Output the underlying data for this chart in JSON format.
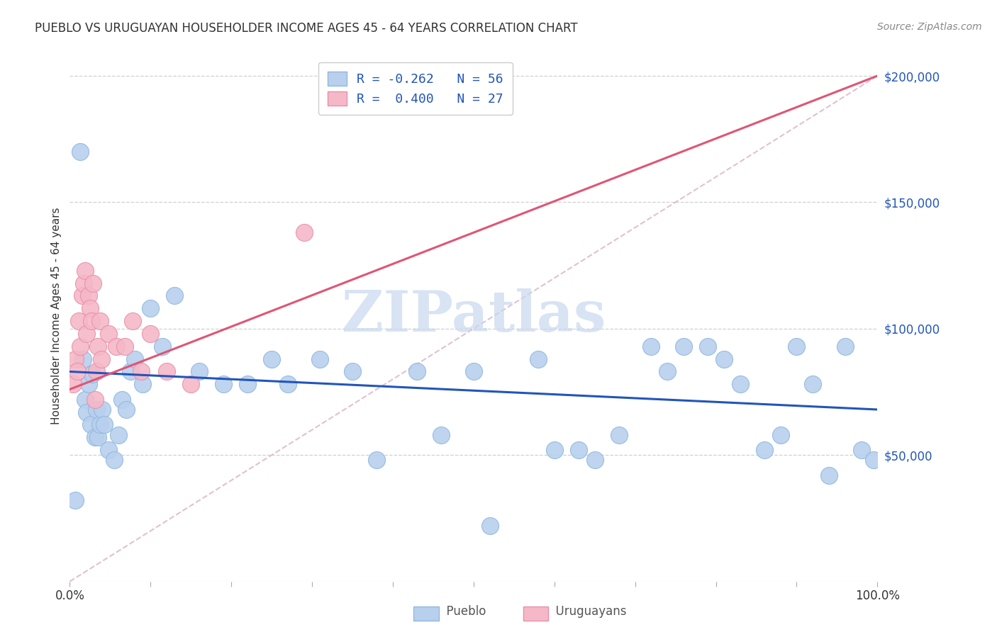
{
  "title": "PUEBLO VS URUGUAYAN HOUSEHOLDER INCOME AGES 45 - 64 YEARS CORRELATION CHART",
  "source": "Source: ZipAtlas.com",
  "ylabel": "Householder Income Ages 45 - 64 years",
  "xlim": [
    0,
    1
  ],
  "ylim": [
    0,
    210000
  ],
  "yticks": [
    50000,
    100000,
    150000,
    200000
  ],
  "ytick_labels": [
    "$50,000",
    "$100,000",
    "$150,000",
    "$200,000"
  ],
  "xticks": [
    0,
    0.1,
    0.2,
    0.3,
    0.4,
    0.5,
    0.6,
    0.7,
    0.8,
    0.9,
    1.0
  ],
  "xtick_labels": [
    "0.0%",
    "",
    "",
    "",
    "",
    "",
    "",
    "",
    "",
    "",
    "100.0%"
  ],
  "background_color": "#ffffff",
  "grid_color": "#d0d0d0",
  "pueblo_color": "#b8d0ed",
  "uruguayan_color": "#f5b8c8",
  "pueblo_edge": "#90b8e0",
  "uruguayan_edge": "#e890a8",
  "blue_line_color": "#2255bb",
  "pink_line_color": "#e05575",
  "ref_line_color": "#ddbbcc",
  "tick_label_color": "#2255bb",
  "watermark_color": "#c8d8ee",
  "blue_line_x": [
    0.0,
    1.0
  ],
  "blue_line_y": [
    83000,
    68000
  ],
  "pink_line_x": [
    0.0,
    1.0
  ],
  "pink_line_y": [
    76000,
    200000
  ],
  "ref_line_x": [
    0.0,
    1.0
  ],
  "ref_line_y": [
    0,
    200000
  ],
  "pueblo_x": [
    0.007,
    0.013,
    0.016,
    0.019,
    0.021,
    0.023,
    0.026,
    0.028,
    0.031,
    0.033,
    0.035,
    0.037,
    0.04,
    0.043,
    0.048,
    0.055,
    0.06,
    0.065,
    0.07,
    0.075,
    0.08,
    0.09,
    0.1,
    0.115,
    0.13,
    0.16,
    0.19,
    0.22,
    0.25,
    0.27,
    0.31,
    0.35,
    0.38,
    0.43,
    0.46,
    0.5,
    0.52,
    0.58,
    0.6,
    0.63,
    0.65,
    0.68,
    0.72,
    0.74,
    0.76,
    0.79,
    0.81,
    0.83,
    0.86,
    0.88,
    0.9,
    0.92,
    0.94,
    0.96,
    0.98,
    0.995
  ],
  "pueblo_y": [
    32000,
    170000,
    88000,
    72000,
    67000,
    78000,
    62000,
    82000,
    57000,
    68000,
    57000,
    62000,
    68000,
    62000,
    52000,
    48000,
    58000,
    72000,
    68000,
    83000,
    88000,
    78000,
    108000,
    93000,
    113000,
    83000,
    78000,
    78000,
    88000,
    78000,
    88000,
    83000,
    48000,
    83000,
    58000,
    83000,
    22000,
    88000,
    52000,
    52000,
    48000,
    58000,
    93000,
    83000,
    93000,
    93000,
    88000,
    78000,
    52000,
    58000,
    93000,
    78000,
    42000,
    93000,
    52000,
    48000
  ],
  "uruguayan_x": [
    0.004,
    0.007,
    0.009,
    0.011,
    0.013,
    0.015,
    0.017,
    0.019,
    0.021,
    0.023,
    0.025,
    0.027,
    0.029,
    0.031,
    0.033,
    0.035,
    0.037,
    0.039,
    0.048,
    0.058,
    0.068,
    0.078,
    0.088,
    0.1,
    0.12,
    0.15,
    0.29
  ],
  "uruguayan_y": [
    78000,
    88000,
    83000,
    103000,
    93000,
    113000,
    118000,
    123000,
    98000,
    113000,
    108000,
    103000,
    118000,
    72000,
    83000,
    93000,
    103000,
    88000,
    98000,
    93000,
    93000,
    103000,
    83000,
    98000,
    83000,
    78000,
    138000
  ],
  "watermark": "ZIPatlas",
  "legend_items": [
    {
      "label": "R = -0.262   N = 56",
      "facecolor": "#b8d0ed",
      "edgecolor": "#90b8e0"
    },
    {
      "label": "R =  0.400   N = 27",
      "facecolor": "#f5b8c8",
      "edgecolor": "#e890a8"
    }
  ]
}
